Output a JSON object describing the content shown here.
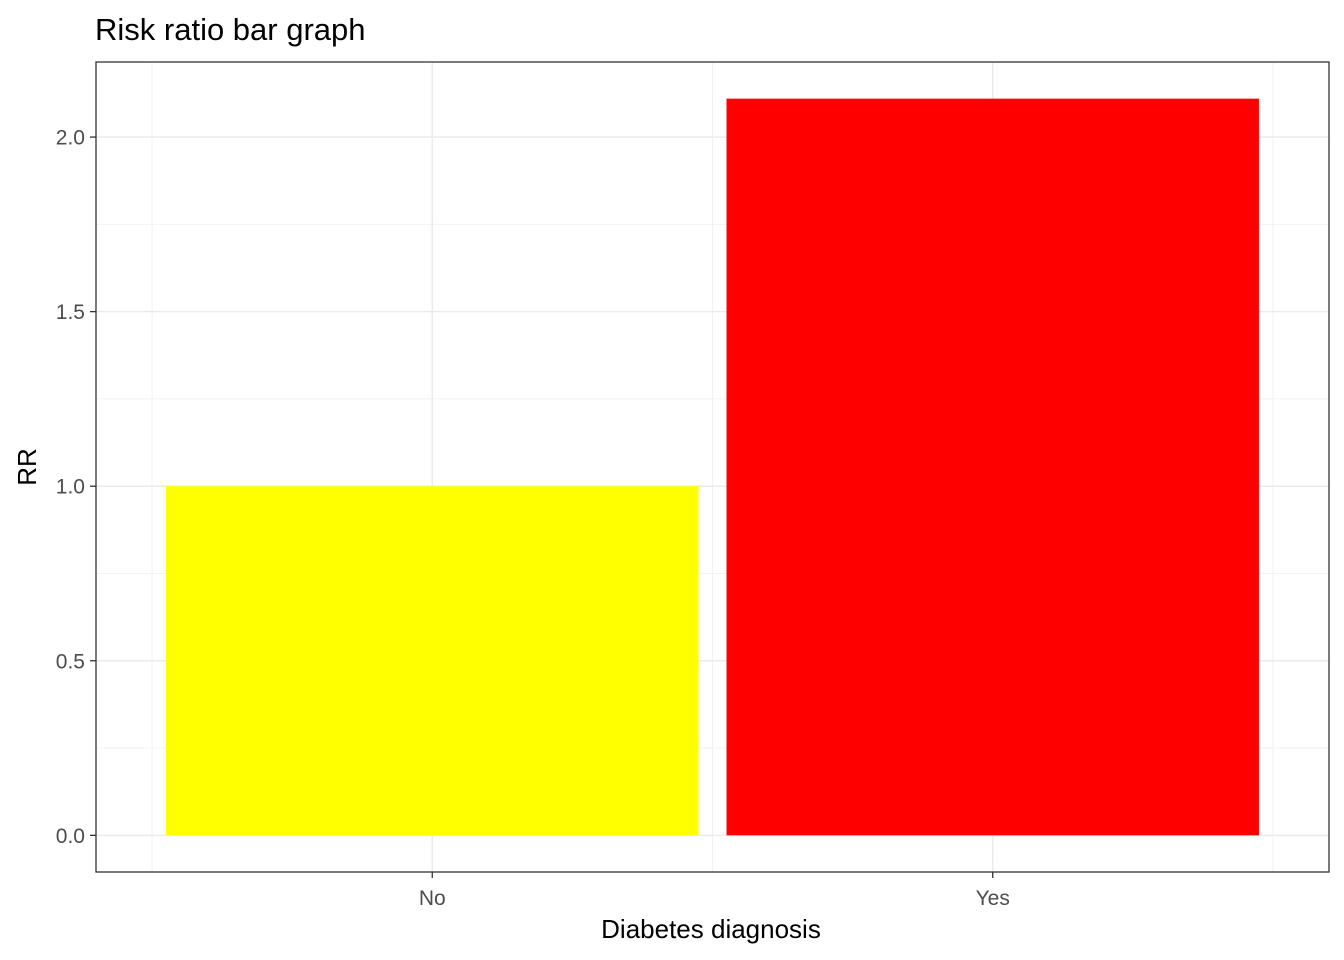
{
  "chart_data": {
    "type": "bar",
    "title": "Risk ratio bar graph",
    "xlabel": "Diabetes diagnosis",
    "ylabel": "RR",
    "categories": [
      "No",
      "Yes"
    ],
    "values": [
      1.0,
      2.11
    ],
    "bar_colors": [
      "#ffff00",
      "#ff0000"
    ],
    "ylim": [
      -0.105,
      2.215
    ],
    "y_ticks": [
      0.0,
      0.5,
      1.0,
      1.5,
      2.0
    ],
    "y_tick_labels": [
      "0.0",
      "0.5",
      "1.0",
      "1.5",
      "2.0"
    ],
    "grid": true,
    "legend": "none"
  }
}
